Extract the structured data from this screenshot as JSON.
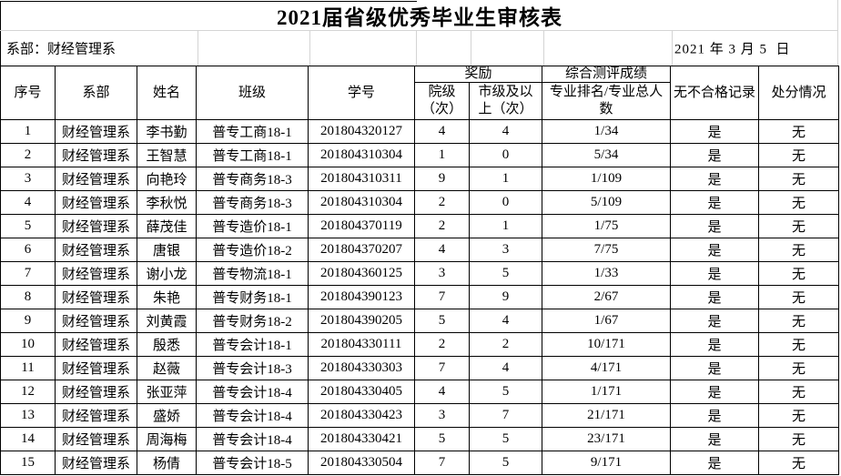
{
  "title": "2021届省级优秀毕业生审核表",
  "info_bar": {
    "department": "系部：财经管理系",
    "date": "2021 年 3 月 5  日"
  },
  "table": {
    "col_keys": [
      "xuhao",
      "xibu",
      "xingming",
      "banji",
      "xuehao",
      "yuanji_ci",
      "shiji_ci",
      "zhuanye_paiming",
      "wu_buhege_jilu",
      "chufen_qingkuang"
    ],
    "headers": {
      "xuhao": "序号",
      "xibu": "系部",
      "xingming": "姓名",
      "banji": "班级",
      "xuehao": "学号",
      "jiangli_group": "奖励",
      "yuanji_ci": "院级\n（次）",
      "shiji_ci": "市级及以\n上（次）",
      "zongce_group": "综合测评成绩",
      "zhuanye_paiming": "专业排名/专业总人\n数",
      "wu_buhege_jilu": "无不合格记录",
      "chufen_qingkuang": "处分情况"
    },
    "rows": [
      [
        "1",
        "财经管理系",
        "李书勤",
        "普专工商18-1",
        "201804320127",
        "4",
        "4",
        "1/34",
        "是",
        "无"
      ],
      [
        "2",
        "财经管理系",
        "王智慧",
        "普专工商18-1",
        "201804310304",
        "1",
        "0",
        "5/34",
        "是",
        "无"
      ],
      [
        "3",
        "财经管理系",
        "向艳玲",
        "普专商务18-3",
        "201804310311",
        "9",
        "1",
        "1/109",
        "是",
        "无"
      ],
      [
        "4",
        "财经管理系",
        "李秋悦",
        "普专商务18-3",
        "201804310304",
        "2",
        "0",
        "5/109",
        "是",
        "无"
      ],
      [
        "5",
        "财经管理系",
        "薛茂佳",
        "普专造价18-1",
        "201804370119",
        "2",
        "1",
        "1/75",
        "是",
        "无"
      ],
      [
        "6",
        "财经管理系",
        "唐银",
        "普专造价18-2",
        "201804370207",
        "4",
        "3",
        "7/75",
        "是",
        "无"
      ],
      [
        "7",
        "财经管理系",
        "谢小龙",
        "普专物流18-1",
        "201804360125",
        "3",
        "5",
        "1/33",
        "是",
        "无"
      ],
      [
        "8",
        "财经管理系",
        "朱艳",
        "普专财务18-1",
        "201804390123",
        "7",
        "9",
        "2/67",
        "是",
        "无"
      ],
      [
        "9",
        "财经管理系",
        "刘黄霞",
        "普专财务18-2",
        "201804390205",
        "5",
        "4",
        "1/67",
        "是",
        "无"
      ],
      [
        "10",
        "财经管理系",
        "殷悉",
        "普专会计18-1",
        "201804330111",
        "2",
        "2",
        "10/171",
        "是",
        "无"
      ],
      [
        "11",
        "财经管理系",
        "赵薇",
        "普专会计18-3",
        "201804330303",
        "7",
        "4",
        "4/171",
        "是",
        "无"
      ],
      [
        "12",
        "财经管理系",
        "张亚萍",
        "普专会计18-4",
        "201804330405",
        "4",
        "5",
        "1/171",
        "是",
        "无"
      ],
      [
        "13",
        "财经管理系",
        "盛娇",
        "普专会计18-4",
        "201804330423",
        "3",
        "7",
        "21/171",
        "是",
        "无"
      ],
      [
        "14",
        "财经管理系",
        "周海梅",
        "普专会计18-4",
        "201804330421",
        "5",
        "5",
        "23/171",
        "是",
        "无"
      ],
      [
        "15",
        "财经管理系",
        "杨倩",
        "普专会计18-5",
        "201804330504",
        "7",
        "5",
        "9/171",
        "是",
        "无"
      ]
    ]
  },
  "colors": {
    "border": "#000000",
    "gridline": "#d4d4d4",
    "text": "#000000",
    "background": "#ffffff"
  }
}
